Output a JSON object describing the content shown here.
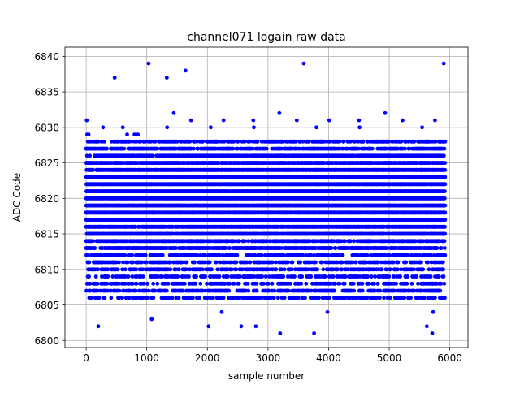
{
  "chart_data": {
    "type": "scatter",
    "title": "channel071 logain raw data",
    "xlabel": "sample number",
    "ylabel": "ADC Code",
    "xlim": [
      -350,
      6300
    ],
    "ylim": [
      6799,
      6841.3
    ],
    "xticks": [
      0,
      1000,
      2000,
      3000,
      4000,
      5000,
      6000
    ],
    "yticks": [
      6800,
      6805,
      6810,
      6815,
      6820,
      6825,
      6830,
      6835,
      6840
    ],
    "grid": true,
    "marker_color": "#0000ff",
    "series": [
      {
        "x_range": [
          0,
          5920
        ],
        "y_range": [
          6801,
          6839
        ],
        "core_range": [
          6806,
          6828
        ],
        "center": 6820,
        "notable_points": [
          {
            "x": 200,
            "y": 6802
          },
          {
            "x": 470,
            "y": 6837
          },
          {
            "x": 1030,
            "y": 6839
          },
          {
            "x": 1080,
            "y": 6803
          },
          {
            "x": 1330,
            "y": 6837
          },
          {
            "x": 1640,
            "y": 6838
          },
          {
            "x": 2020,
            "y": 6802
          },
          {
            "x": 2560,
            "y": 6802
          },
          {
            "x": 2800,
            "y": 6802
          },
          {
            "x": 3200,
            "y": 6801
          },
          {
            "x": 3590,
            "y": 6839
          },
          {
            "x": 3760,
            "y": 6801
          },
          {
            "x": 5620,
            "y": 6802
          },
          {
            "x": 5710,
            "y": 6801
          },
          {
            "x": 5900,
            "y": 6839
          }
        ]
      }
    ]
  }
}
